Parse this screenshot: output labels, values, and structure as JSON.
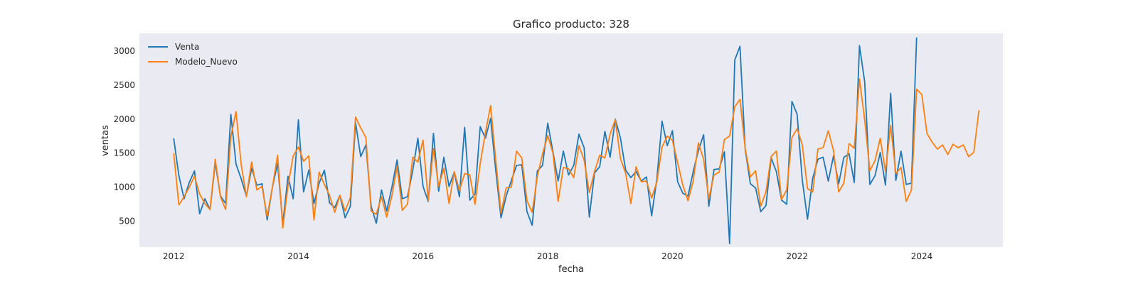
{
  "chart_data": {
    "type": "line",
    "title": "Grafico producto: 328",
    "xlabel": "fecha",
    "ylabel": "ventas",
    "xlim": [
      2011.45,
      2025.3
    ],
    "ylim": [
      120,
      3260
    ],
    "x_ticks": [
      2012,
      2014,
      2016,
      2018,
      2020,
      2022,
      2024
    ],
    "y_ticks": [
      500,
      1000,
      1500,
      2000,
      2500,
      3000
    ],
    "grid": false,
    "legend": "top-left",
    "background": "#eaeaf2",
    "series": [
      {
        "name": "Venta",
        "color": "#1f77b4",
        "start": "2012-01",
        "values": [
          1720,
          1170,
          830,
          1070,
          1240,
          610,
          830,
          670,
          1360,
          870,
          760,
          2070,
          1340,
          1120,
          870,
          1280,
          1030,
          1050,
          520,
          1000,
          1350,
          460,
          1160,
          830,
          1990,
          930,
          1250,
          760,
          1060,
          1250,
          770,
          700,
          880,
          550,
          720,
          1950,
          1450,
          1620,
          720,
          470,
          960,
          650,
          1000,
          1400,
          830,
          860,
          1240,
          1720,
          1010,
          790,
          1790,
          940,
          1440,
          1010,
          1220,
          860,
          1880,
          810,
          900,
          1890,
          1720,
          2010,
          1240,
          550,
          870,
          1100,
          1320,
          1330,
          640,
          440,
          1240,
          1320,
          1940,
          1520,
          1090,
          1530,
          1180,
          1320,
          1780,
          1580,
          560,
          1210,
          1300,
          1820,
          1440,
          2000,
          1720,
          1250,
          1140,
          1230,
          1090,
          1150,
          580,
          1120,
          1970,
          1610,
          1830,
          1080,
          910,
          870,
          1230,
          1540,
          1770,
          720,
          1260,
          1270,
          1520,
          170,
          2870,
          3070,
          1560,
          1050,
          990,
          640,
          730,
          1430,
          1230,
          810,
          750,
          2260,
          2070,
          1100,
          530,
          1130,
          1410,
          1440,
          1090,
          1460,
          1050,
          1440,
          1490,
          1070,
          3080,
          2550,
          1040,
          1170,
          1510,
          1030,
          2380,
          1100,
          1530,
          1040,
          1060,
          3200
        ]
      },
      {
        "name": "Modelo_Nuevo",
        "color": "#ff7f0e",
        "start": "2012-01",
        "values": [
          1500,
          740,
          860,
          1000,
          1160,
          900,
          760,
          670,
          1410,
          860,
          670,
          1740,
          2110,
          1330,
          860,
          1370,
          960,
          1010,
          570,
          1000,
          1470,
          400,
          1020,
          1460,
          1590,
          1380,
          1460,
          520,
          1220,
          1040,
          880,
          630,
          880,
          650,
          850,
          2030,
          1870,
          1730,
          650,
          600,
          860,
          560,
          870,
          1310,
          660,
          750,
          1440,
          1370,
          1690,
          800,
          1570,
          1010,
          1280,
          760,
          1230,
          950,
          1200,
          1180,
          750,
          1350,
          1800,
          2200,
          1390,
          620,
          990,
          1000,
          1530,
          1430,
          800,
          630,
          1160,
          1490,
          1760,
          1500,
          790,
          1290,
          1270,
          1140,
          1610,
          1400,
          920,
          1230,
          1470,
          1430,
          1780,
          1990,
          1420,
          1200,
          760,
          1300,
          1080,
          1090,
          840,
          1080,
          1590,
          1750,
          1690,
          1360,
          1030,
          800,
          1090,
          1650,
          1410,
          830,
          1180,
          1220,
          1700,
          1750,
          2180,
          2290,
          1570,
          1150,
          1240,
          720,
          930,
          1450,
          1530,
          820,
          960,
          1730,
          1860,
          1620,
          980,
          930,
          1560,
          1580,
          1830,
          1540,
          930,
          1060,
          1640,
          1570,
          2590,
          1990,
          1240,
          1390,
          1720,
          1230,
          1910,
          1200,
          1290,
          790,
          960,
          2440,
          2360,
          1790,
          1660,
          1560,
          1620,
          1480,
          1630,
          1580,
          1620,
          1450,
          1510,
          2130
        ]
      }
    ]
  }
}
